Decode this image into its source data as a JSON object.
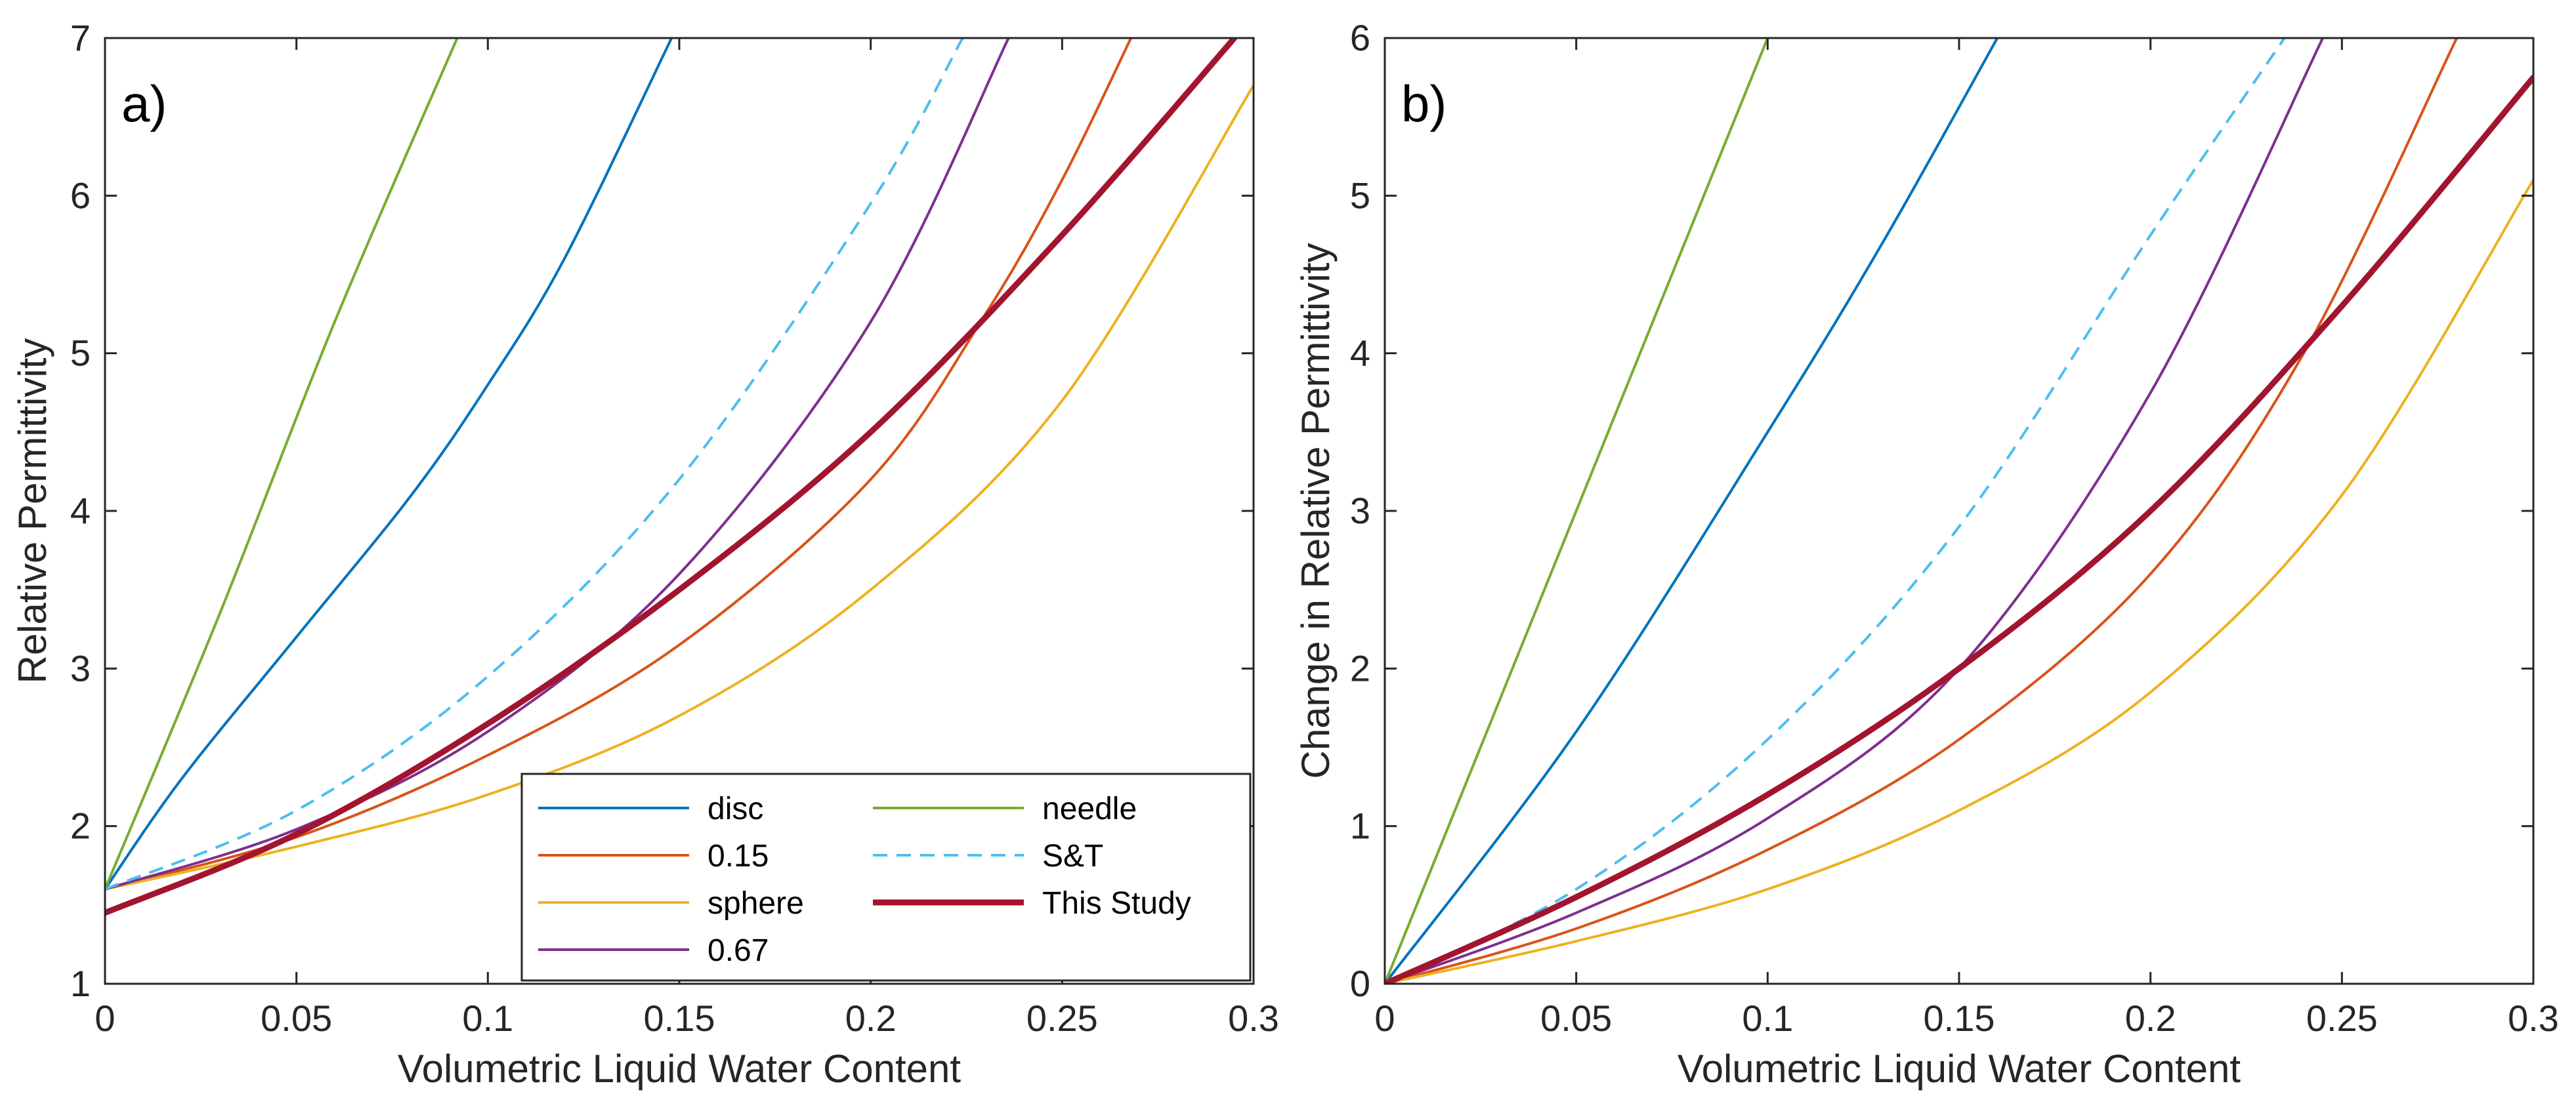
{
  "chart_data": [
    {
      "type": "line",
      "panel_label": "a)",
      "xlabel": "Volumetric Liquid Water Content",
      "ylabel": "Relative Permittivity",
      "xlim": [
        0,
        0.3
      ],
      "ylim": [
        1,
        7
      ],
      "xticks": [
        0,
        0.05,
        0.1,
        0.15,
        0.2,
        0.25,
        0.3
      ],
      "xtick_labels": [
        "0",
        "0.05",
        "0.1",
        "0.15",
        "0.2",
        "0.25",
        "0.3"
      ],
      "yticks": [
        1,
        2,
        3,
        4,
        5,
        6,
        7
      ],
      "ytick_labels": [
        "1",
        "2",
        "3",
        "4",
        "5",
        "6",
        "7"
      ],
      "legend_position": "bottom-right",
      "series": [
        {
          "name": "disc",
          "color": "#0072BD",
          "dash": "solid",
          "width": "normal",
          "x": [
            0,
            0.02,
            0.05,
            0.08,
            0.1,
            0.12,
            0.148
          ],
          "y": [
            1.6,
            2.3,
            3.2,
            4.1,
            4.8,
            5.6,
            7.0
          ]
        },
        {
          "name": "0.15",
          "color": "#D95319",
          "dash": "solid",
          "width": "normal",
          "x": [
            0,
            0.05,
            0.1,
            0.15,
            0.2,
            0.23,
            0.25,
            0.268
          ],
          "y": [
            1.6,
            1.93,
            2.45,
            3.15,
            4.2,
            5.25,
            6.1,
            7.0
          ]
        },
        {
          "name": "sphere",
          "color": "#EDB120",
          "dash": "solid",
          "width": "normal",
          "x": [
            0,
            0.05,
            0.1,
            0.15,
            0.2,
            0.25,
            0.3
          ],
          "y": [
            1.6,
            1.87,
            2.2,
            2.7,
            3.5,
            4.7,
            6.7
          ]
        },
        {
          "name": "0.67",
          "color": "#7E2F8E",
          "dash": "solid",
          "width": "normal",
          "x": [
            0,
            0.05,
            0.1,
            0.15,
            0.2,
            0.236
          ],
          "y": [
            1.6,
            1.98,
            2.6,
            3.6,
            5.2,
            7.0
          ]
        },
        {
          "name": "needle",
          "color": "#77AC30",
          "dash": "solid",
          "width": "normal",
          "x": [
            0,
            0.03,
            0.06,
            0.092
          ],
          "y": [
            1.6,
            3.35,
            5.2,
            7.0
          ]
        },
        {
          "name": "S&T",
          "color": "#4DBEEE",
          "dash": "dashed",
          "width": "normal",
          "x": [
            0,
            0.05,
            0.1,
            0.15,
            0.2,
            0.224
          ],
          "y": [
            1.6,
            2.1,
            2.95,
            4.2,
            5.95,
            7.0
          ]
        },
        {
          "name": "This Study",
          "color": "#A2142F",
          "dash": "solid",
          "width": "thick",
          "x": [
            0,
            0.05,
            0.1,
            0.15,
            0.2,
            0.25,
            0.295
          ],
          "y": [
            1.45,
            1.95,
            2.65,
            3.5,
            4.5,
            5.75,
            7.0
          ]
        }
      ]
    },
    {
      "type": "line",
      "panel_label": "b)",
      "xlabel": "Volumetric Liquid Water Content",
      "ylabel": "Change in Relative Permittivity",
      "xlim": [
        0,
        0.3
      ],
      "ylim": [
        0,
        6
      ],
      "xticks": [
        0,
        0.05,
        0.1,
        0.15,
        0.2,
        0.25,
        0.3
      ],
      "xtick_labels": [
        "0",
        "0.05",
        "0.1",
        "0.15",
        "0.2",
        "0.25",
        "0.3"
      ],
      "yticks": [
        0,
        1,
        2,
        3,
        4,
        5,
        6
      ],
      "ytick_labels": [
        "0",
        "1",
        "2",
        "3",
        "4",
        "5",
        "6"
      ],
      "series": [
        {
          "name": "disc",
          "color": "#0072BD",
          "dash": "solid",
          "width": "normal",
          "x": [
            0,
            0.05,
            0.1,
            0.13,
            0.16
          ],
          "y": [
            0,
            1.6,
            3.5,
            4.7,
            6.0
          ]
        },
        {
          "name": "0.15",
          "color": "#D95319",
          "dash": "solid",
          "width": "normal",
          "x": [
            0,
            0.05,
            0.1,
            0.15,
            0.2,
            0.24,
            0.28
          ],
          "y": [
            0,
            0.35,
            0.85,
            1.55,
            2.6,
            4.0,
            6.0
          ]
        },
        {
          "name": "sphere",
          "color": "#EDB120",
          "dash": "solid",
          "width": "normal",
          "x": [
            0,
            0.05,
            0.1,
            0.15,
            0.2,
            0.25,
            0.3
          ],
          "y": [
            0,
            0.27,
            0.6,
            1.1,
            1.85,
            3.1,
            5.1
          ]
        },
        {
          "name": "0.67",
          "color": "#7E2F8E",
          "dash": "solid",
          "width": "normal",
          "x": [
            0,
            0.05,
            0.1,
            0.15,
            0.2,
            0.245
          ],
          "y": [
            0,
            0.45,
            1.05,
            2.0,
            3.75,
            6.0
          ]
        },
        {
          "name": "needle",
          "color": "#77AC30",
          "dash": "solid",
          "width": "normal",
          "x": [
            0,
            0.05,
            0.1
          ],
          "y": [
            0,
            3.0,
            6.0
          ]
        },
        {
          "name": "S&T",
          "color": "#4DBEEE",
          "dash": "dashed",
          "width": "normal",
          "x": [
            0,
            0.05,
            0.1,
            0.15,
            0.2,
            0.235
          ],
          "y": [
            0,
            0.6,
            1.55,
            2.9,
            4.75,
            6.0
          ]
        },
        {
          "name": "This Study",
          "color": "#A2142F",
          "dash": "solid",
          "width": "thick",
          "x": [
            0,
            0.05,
            0.1,
            0.15,
            0.2,
            0.25,
            0.3
          ],
          "y": [
            0,
            0.55,
            1.2,
            2.0,
            3.0,
            4.3,
            5.75
          ]
        }
      ]
    }
  ]
}
